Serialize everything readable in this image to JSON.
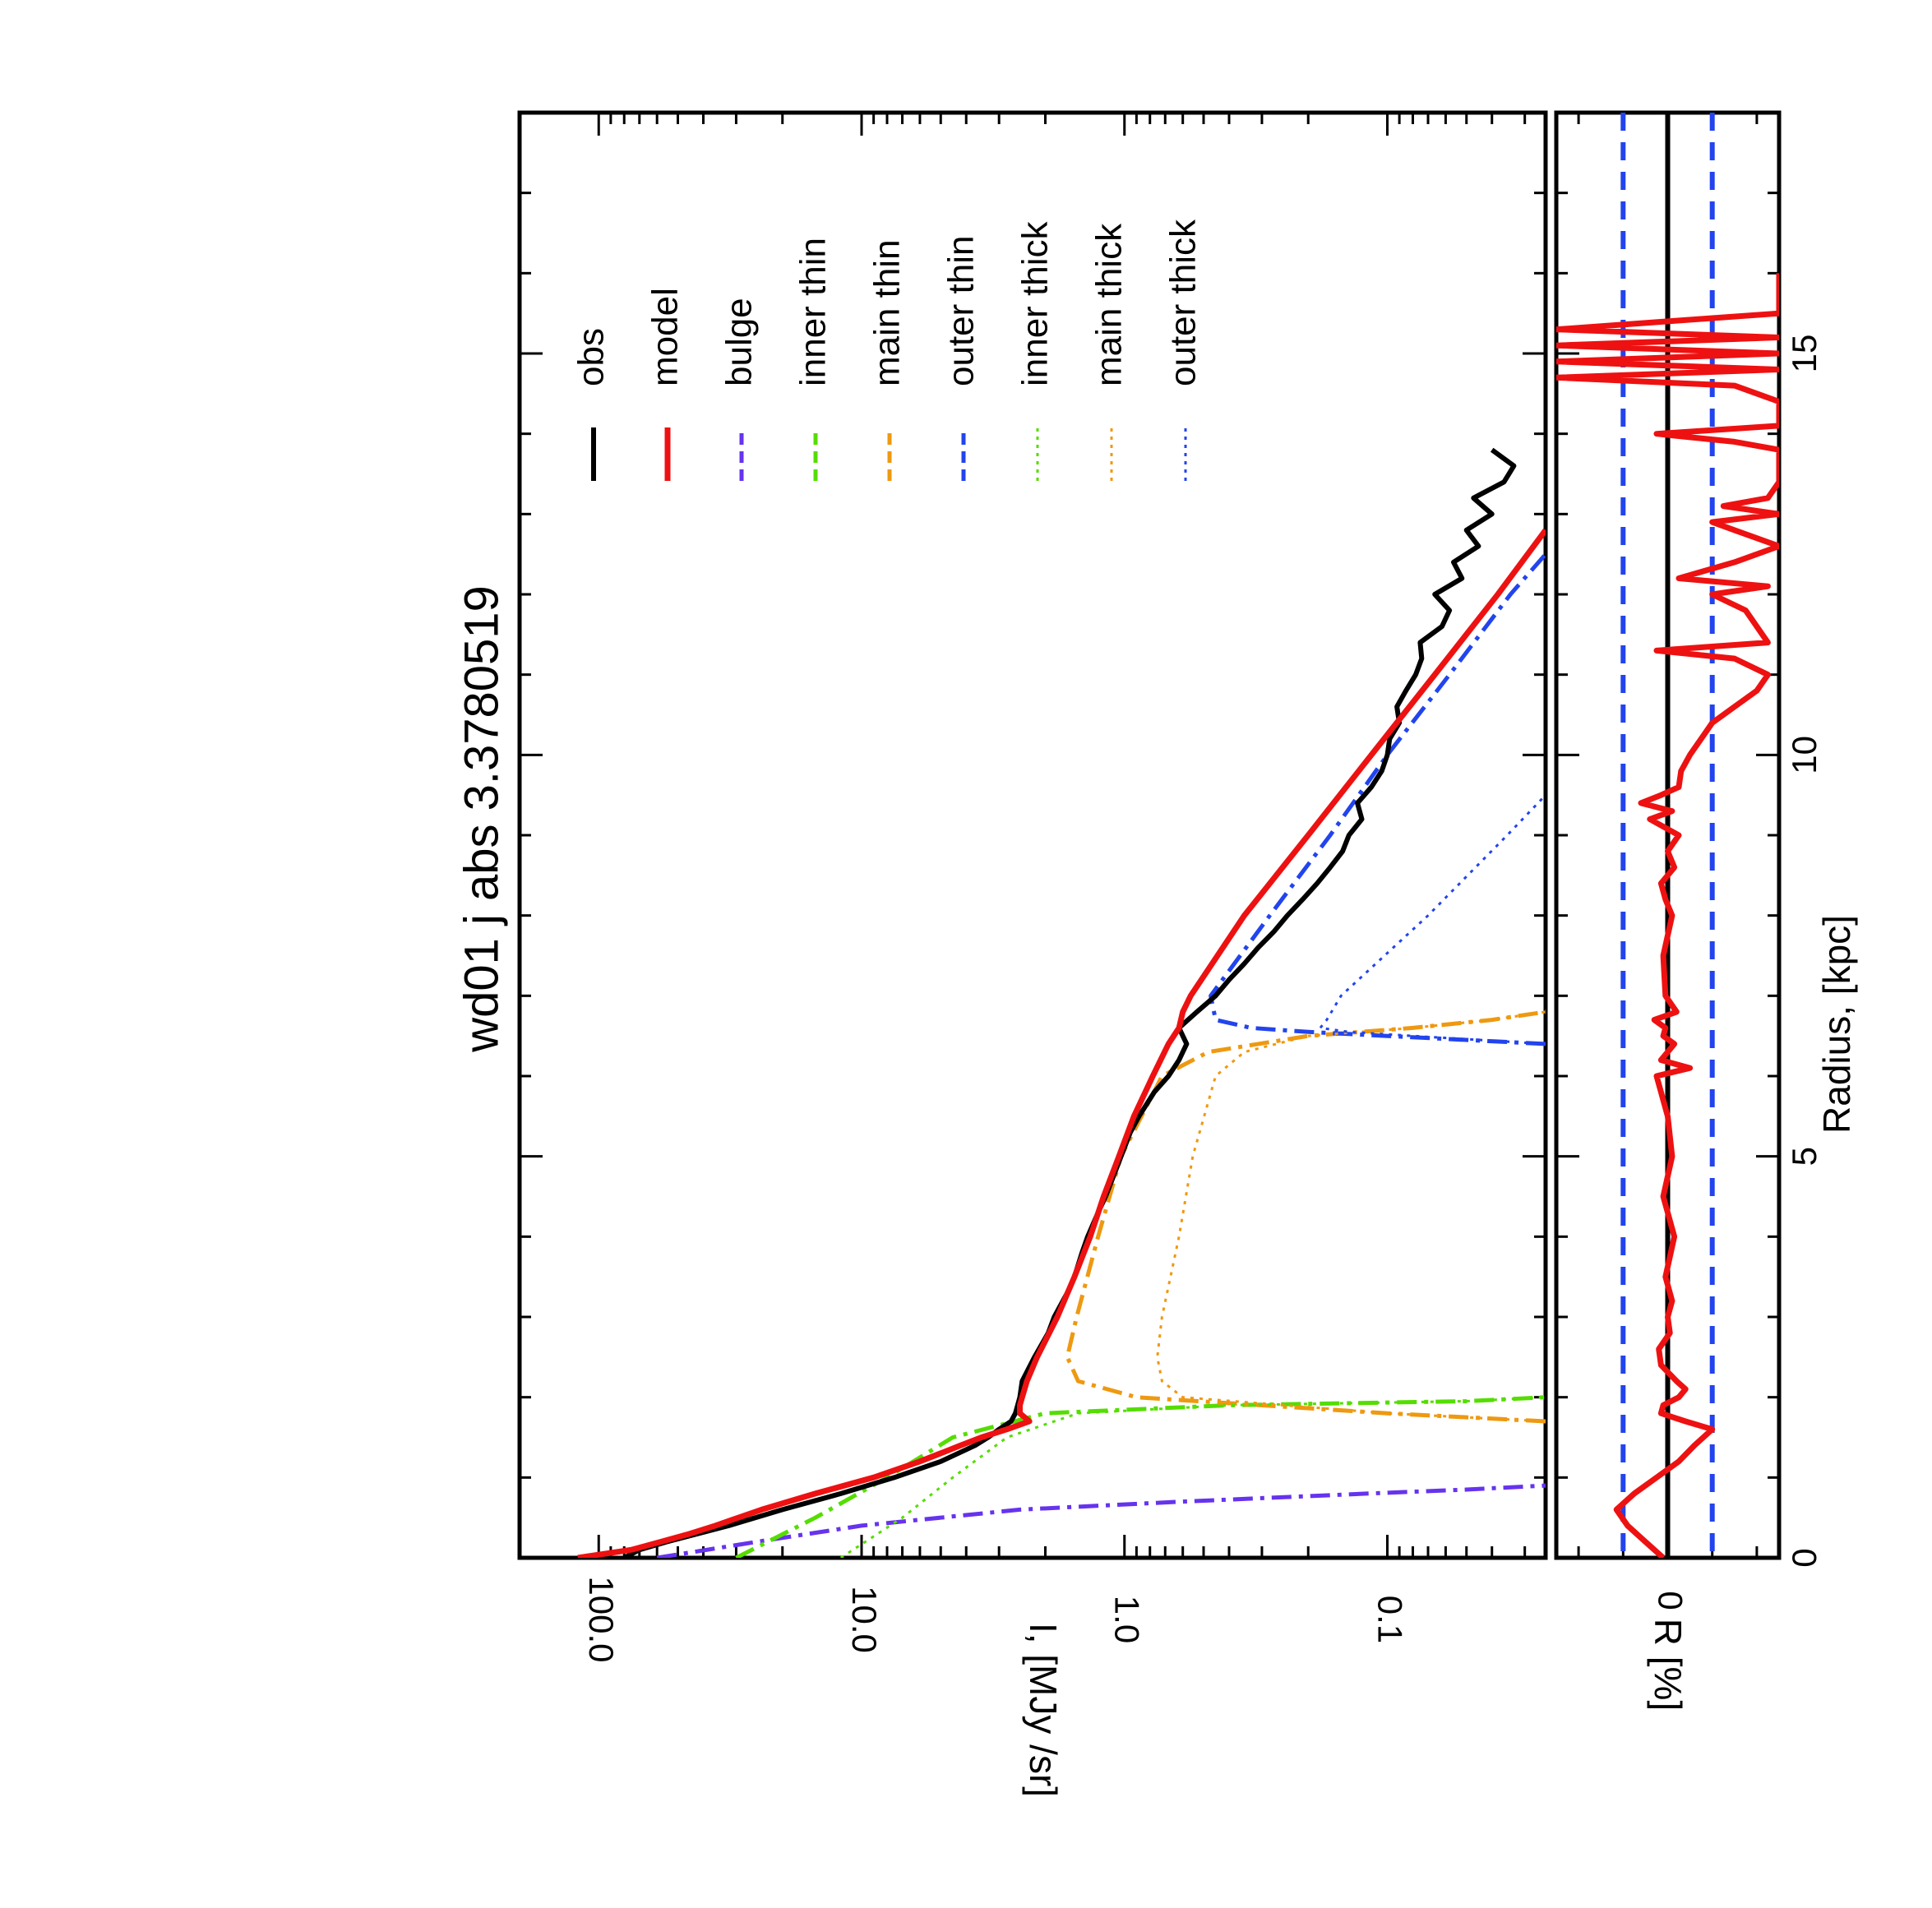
{
  "chart_data": {
    "type": "line",
    "orientation": "rotated-90-ccw",
    "title": "wd01 j abs 3.3780519",
    "xlabel": "Radius, [kpc]",
    "xlim": [
      0,
      18
    ],
    "xticks": [
      0,
      5,
      10,
      15
    ],
    "panels": [
      {
        "id": "profile",
        "ylabel": "I, [MJy /sr]",
        "yscale": "log",
        "ylim": [
          0.025,
          200
        ],
        "yticks": [
          100.0,
          10.0,
          1.0,
          0.1
        ],
        "yticklabels": [
          "100.0",
          "10.0",
          "1.0",
          "0.1"
        ],
        "legend_placement": "upper-right",
        "series": [
          {
            "name": "obs",
            "color": "#000000",
            "style": "solid",
            "width": 6,
            "x": [
              0.0,
              0.1,
              0.2,
              0.3,
              0.4,
              0.6,
              0.8,
              1.0,
              1.2,
              1.4,
              1.5,
              1.6,
              1.7,
              1.8,
              2.0,
              2.2,
              2.5,
              2.8,
              3.0,
              3.3,
              3.5,
              3.8,
              4.0,
              4.3,
              4.5,
              5.0,
              5.3,
              5.5,
              5.8,
              6.0,
              6.2,
              6.4,
              6.6,
              6.8,
              7.0,
              7.2,
              7.4,
              7.6,
              7.8,
              8.0,
              8.2,
              8.4,
              8.6,
              8.8,
              9.0,
              9.2,
              9.4,
              9.6,
              9.8,
              10.0,
              10.2,
              10.4,
              10.6,
              10.8,
              11.0,
              11.2,
              11.4,
              11.6,
              11.8,
              12.0,
              12.2,
              12.4,
              12.6,
              12.8,
              13.0,
              13.2,
              13.4,
              13.6,
              13.8
            ],
            "y": [
              80,
              70,
              55,
              42,
              32,
              20,
              12,
              7.5,
              5.0,
              3.7,
              3.3,
              3.0,
              2.7,
              2.6,
              2.5,
              2.45,
              2.2,
              1.95,
              1.85,
              1.65,
              1.55,
              1.45,
              1.38,
              1.26,
              1.18,
              1.03,
              0.95,
              0.88,
              0.77,
              0.68,
              0.62,
              0.58,
              0.62,
              0.53,
              0.45,
              0.4,
              0.35,
              0.31,
              0.27,
              0.24,
              0.21,
              0.185,
              0.165,
              0.148,
              0.14,
              0.125,
              0.13,
              0.115,
              0.105,
              0.1,
              0.098,
              0.09,
              0.092,
              0.085,
              0.078,
              0.074,
              0.075,
              0.062,
              0.058,
              0.066,
              0.052,
              0.056,
              0.045,
              0.05,
              0.04,
              0.047,
              0.036,
              0.033,
              0.04
            ]
          },
          {
            "name": "model",
            "color": "#ee1111",
            "style": "solid",
            "width": 7,
            "x": [
              0.0,
              0.1,
              0.2,
              0.3,
              0.4,
              0.6,
              0.8,
              1.0,
              1.2,
              1.4,
              1.5,
              1.6,
              1.7,
              1.8,
              1.9,
              2.0,
              2.2,
              2.5,
              3.0,
              3.5,
              4.0,
              4.5,
              5.0,
              5.5,
              6.0,
              6.4,
              6.6,
              6.8,
              7.0,
              8.0,
              9.0,
              10.0,
              11.0,
              12.0,
              12.8
            ],
            "y": [
              120,
              75,
              58,
              45,
              36,
              24,
              15,
              9.0,
              6.0,
              4.2,
              3.5,
              2.8,
              2.3,
              2.5,
              2.5,
              2.45,
              2.35,
              2.15,
              1.8,
              1.55,
              1.35,
              1.2,
              1.05,
              0.92,
              0.78,
              0.68,
              0.62,
              0.6,
              0.56,
              0.35,
              0.2,
              0.115,
              0.066,
              0.038,
              0.025
            ]
          },
          {
            "name": "bulge",
            "color": "#6633ee",
            "style": "dash-dot",
            "width": 5,
            "x": [
              0.0,
              0.2,
              0.4,
              0.6,
              0.7,
              0.8,
              0.85,
              0.9
            ],
            "y": [
              60,
              25,
              10,
              2.5,
              0.6,
              0.12,
              0.05,
              0.025
            ]
          },
          {
            "name": "inner thin",
            "color": "#55dd00",
            "style": "dash-dot",
            "width": 5,
            "x": [
              0.0,
              0.5,
              1.0,
              1.5,
              1.8,
              1.9,
              1.95,
              2.0
            ],
            "y": [
              30,
              15,
              8,
              4.5,
              2.0,
              0.4,
              0.05,
              0.025
            ]
          },
          {
            "name": "main thin",
            "color": "#ee9911",
            "style": "dash-dot",
            "width": 5,
            "x": [
              1.7,
              1.8,
              2.0,
              2.2,
              2.5,
              3.0,
              4.0,
              5.0,
              6.0,
              6.3,
              6.5,
              6.6,
              6.7,
              6.8
            ],
            "y": [
              0.025,
              0.1,
              0.9,
              1.5,
              1.65,
              1.52,
              1.26,
              1.03,
              0.72,
              0.48,
              0.2,
              0.08,
              0.04,
              0.025
            ]
          },
          {
            "name": "outer thin",
            "color": "#2244ee",
            "style": "dash-dot",
            "width": 5,
            "x": [
              6.4,
              6.5,
              6.55,
              6.6,
              6.7,
              7.0,
              8.0,
              9.0,
              10.0,
              11.0,
              12.0,
              12.5
            ],
            "y": [
              0.025,
              0.1,
              0.2,
              0.33,
              0.45,
              0.47,
              0.28,
              0.165,
              0.1,
              0.058,
              0.034,
              0.025
            ]
          },
          {
            "name": "inner thick",
            "color": "#55dd00",
            "style": "dotted",
            "width": 3,
            "x": [
              0.0,
              0.5,
              1.0,
              1.5,
              1.8,
              1.9,
              1.95,
              2.0
            ],
            "y": [
              12,
              7,
              4.5,
              2.8,
              1.5,
              0.4,
              0.05,
              0.025
            ]
          },
          {
            "name": "main thick",
            "color": "#ee9911",
            "style": "dotted",
            "width": 3,
            "x": [
              1.7,
              1.8,
              2.0,
              2.2,
              2.5,
              3.0,
              4.0,
              5.0,
              6.0,
              6.3,
              6.5,
              6.6,
              6.7,
              6.8
            ],
            "y": [
              0.025,
              0.1,
              0.6,
              0.72,
              0.75,
              0.72,
              0.62,
              0.55,
              0.45,
              0.35,
              0.2,
              0.08,
              0.04,
              0.025
            ]
          },
          {
            "name": "outer thick",
            "color": "#2244ee",
            "style": "dotted",
            "width": 3,
            "x": [
              6.4,
              6.5,
              6.55,
              6.6,
              6.7,
              7.0,
              8.0,
              9.0,
              9.5
            ],
            "y": [
              0.025,
              0.08,
              0.14,
              0.18,
              0.17,
              0.15,
              0.07,
              0.035,
              0.025
            ]
          }
        ]
      },
      {
        "id": "residual",
        "ylabel": "R [%]",
        "yscale": "linear",
        "ylim": [
          -5,
          5
        ],
        "yticks": [
          0
        ],
        "yticklabels": [
          "0"
        ],
        "reference_lines": [
          {
            "y": 0,
            "color": "#000000",
            "style": "solid"
          },
          {
            "y": 2.0,
            "color": "#2244ee",
            "style": "dashed"
          },
          {
            "y": -2.0,
            "color": "#2244ee",
            "style": "dashed"
          }
        ],
        "series": [
          {
            "name": "residual",
            "color": "#ee1111",
            "style": "solid",
            "width": 7,
            "x": [
              0.0,
              0.2,
              0.4,
              0.6,
              0.8,
              1.0,
              1.2,
              1.4,
              1.6,
              1.7,
              1.8,
              1.9,
              2.0,
              2.1,
              2.2,
              2.4,
              2.6,
              2.8,
              3.0,
              3.2,
              3.5,
              4.0,
              4.5,
              5.0,
              5.5,
              6.0,
              6.1,
              6.2,
              6.3,
              6.4,
              6.5,
              6.6,
              6.7,
              6.8,
              7.0,
              7.5,
              8.0,
              8.2,
              8.4,
              8.6,
              8.8,
              9.0,
              9.2,
              9.3,
              9.4,
              9.5,
              9.6,
              9.8,
              10.0,
              10.2,
              10.4,
              10.6,
              10.8,
              11.0,
              11.2,
              11.3,
              11.4,
              11.6,
              11.8,
              12.0,
              12.1,
              12.2,
              12.4,
              12.6,
              12.8,
              12.9,
              13.0,
              13.1,
              13.2,
              13.4,
              13.6,
              13.8,
              13.9,
              14.0,
              14.1,
              14.2,
              14.3,
              14.4,
              14.5,
              14.6,
              14.7,
              14.8,
              14.9,
              15.0,
              15.1,
              15.2,
              15.3,
              15.4,
              15.5,
              15.6,
              15.7,
              15.8,
              15.9,
              16.0
            ],
            "y": [
              0.2,
              1.0,
              1.8,
              2.3,
              1.5,
              0.5,
              -0.5,
              -1.2,
              -2.0,
              -0.8,
              0.3,
              0.2,
              -0.5,
              -0.8,
              -0.4,
              0.3,
              0.4,
              -0.1,
              0.0,
              -0.2,
              0.1,
              -0.3,
              0.2,
              -0.2,
              0.0,
              0.5,
              -1.0,
              0.3,
              0.0,
              -0.3,
              0.2,
              0.1,
              0.6,
              -0.4,
              0.1,
              0.2,
              -0.2,
              0.1,
              0.3,
              -0.3,
              0.0,
              -0.5,
              0.8,
              -0.2,
              1.2,
              0.3,
              -0.5,
              -0.6,
              -1.0,
              -1.5,
              -2.0,
              -3.0,
              -4.0,
              -4.5,
              -3.0,
              0.5,
              -4.5,
              -4.0,
              -3.5,
              -2.0,
              -4.5,
              -0.5,
              -3.0,
              -5.0,
              -3.0,
              -2.0,
              -5.0,
              -2.5,
              -4.5,
              -5.0,
              -5.0,
              -5.0,
              -3.0,
              0.5,
              -5.0,
              -5.0,
              -5.0,
              -5.0,
              -4.0,
              -3.0,
              5.0,
              -5.0,
              5.0,
              -5.0,
              5.0,
              -5.0,
              5.0,
              0.0,
              -5.0,
              -5.0,
              -5.0,
              -5.0,
              -5.0,
              -5.0
            ]
          }
        ]
      }
    ]
  }
}
